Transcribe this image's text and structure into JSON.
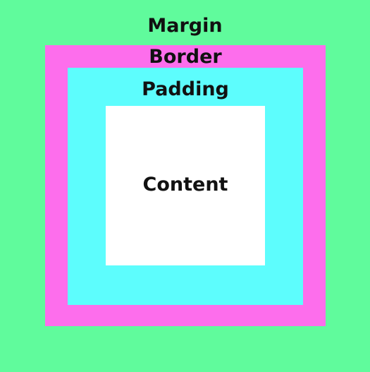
{
  "layers": {
    "margin": {
      "label": "Margin",
      "color": "#60fb9c"
    },
    "border": {
      "label": "Border",
      "color": "#fd6eec"
    },
    "padding": {
      "label": "Padding",
      "color": "#5dfdfd"
    },
    "content": {
      "label": "Content",
      "color": "#ffffff"
    }
  }
}
